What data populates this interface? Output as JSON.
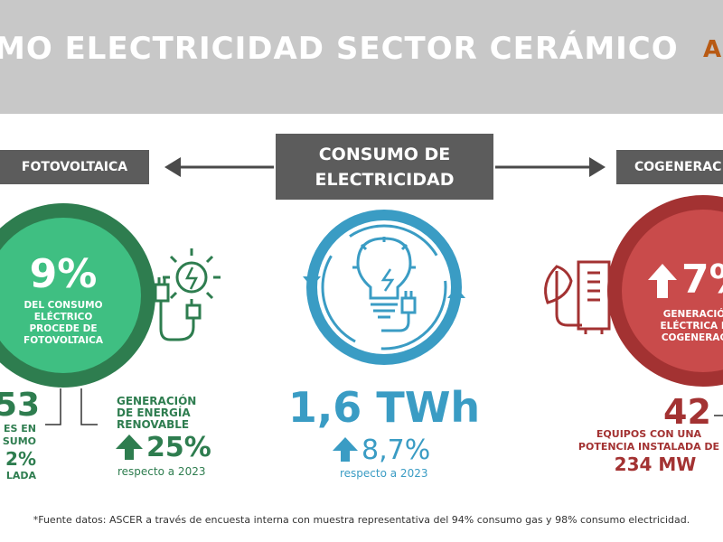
{
  "header": {
    "title": "MO ELECTRICIDAD SECTOR CERÁMICO",
    "logo": "A",
    "colors": {
      "band": "#c8c8c8",
      "logo": "#b85a14"
    }
  },
  "tags": {
    "left": "FOTOVOLTAICA",
    "center_line1": "CONSUMO DE",
    "center_line2": "ELECTRICIDAD",
    "right": "COGENERAC"
  },
  "left": {
    "circle_pct": "9%",
    "circle_text": [
      "DEL CONSUMO",
      "ELÉCTRICO",
      "PROCEDE DE",
      "FOTOVOLTAICA"
    ],
    "icon": "solar-plug-icon",
    "stat_big": "53",
    "stat_lines": [
      "ES EN",
      "SUMO",
      "2%",
      "LADA"
    ],
    "gen_title": [
      "GENERACIÓN",
      "DE ENERGÍA",
      "RENOVABLE"
    ],
    "gen_pct": "25%",
    "gen_note": "respecto a 2023",
    "colors": {
      "outer": "#2e7d4f",
      "inner": "#3fbf82"
    }
  },
  "center": {
    "icon": "lightbulb-plug-icon",
    "value": "1,6 TWh",
    "pct": "8,7%",
    "note": "respecto a 2023",
    "colors": {
      "ring": "#3a9cc4"
    }
  },
  "right": {
    "circle_pct": "7%",
    "circle_text": [
      "GENERACIÓ",
      "ELÉCTRICA P",
      "COGENERAC"
    ],
    "icon": "leaf-boiler-icon",
    "stat_big": "42",
    "stat_lines": [
      "EQUIPOS CON UNA",
      "POTENCIA INSTALADA DE"
    ],
    "stat_power": "234 MW",
    "colors": {
      "outer": "#a33232",
      "inner": "#c94b4b"
    }
  },
  "footer": "*Fuente datos: ASCER a través de encuesta interna con muestra representativa del 94% consumo gas y 98% consumo electricidad."
}
